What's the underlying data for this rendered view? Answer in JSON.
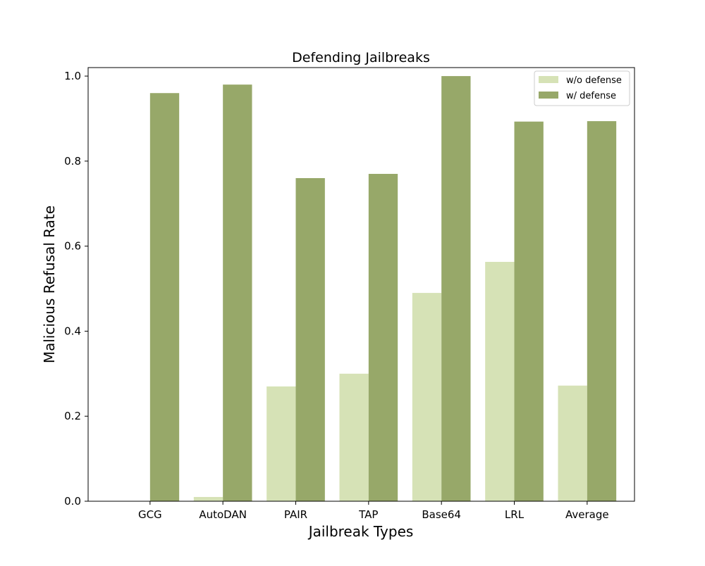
{
  "colors": {
    "without_defense": "#d6e2b6",
    "with_defense": "#97a869"
  },
  "chart_data": {
    "type": "bar",
    "title": "Defending Jailbreaks",
    "xlabel": "Jailbreak Types",
    "ylabel": "Malicious Refusal Rate",
    "categories": [
      "GCG",
      "AutoDAN",
      "PAIR",
      "TAP",
      "Base64",
      "LRL",
      "Average"
    ],
    "ylim": [
      0,
      1.02
    ],
    "yticks": [
      "0.0",
      "0.2",
      "0.4",
      "0.6",
      "0.8",
      "1.0"
    ],
    "grid": false,
    "legend_position": "top-right",
    "series": [
      {
        "name": "w/o defense",
        "values": [
          0.0,
          0.01,
          0.27,
          0.3,
          0.49,
          0.563,
          0.272
        ]
      },
      {
        "name": "w/ defense",
        "values": [
          0.96,
          0.98,
          0.76,
          0.77,
          1.0,
          0.893,
          0.894
        ]
      }
    ]
  }
}
